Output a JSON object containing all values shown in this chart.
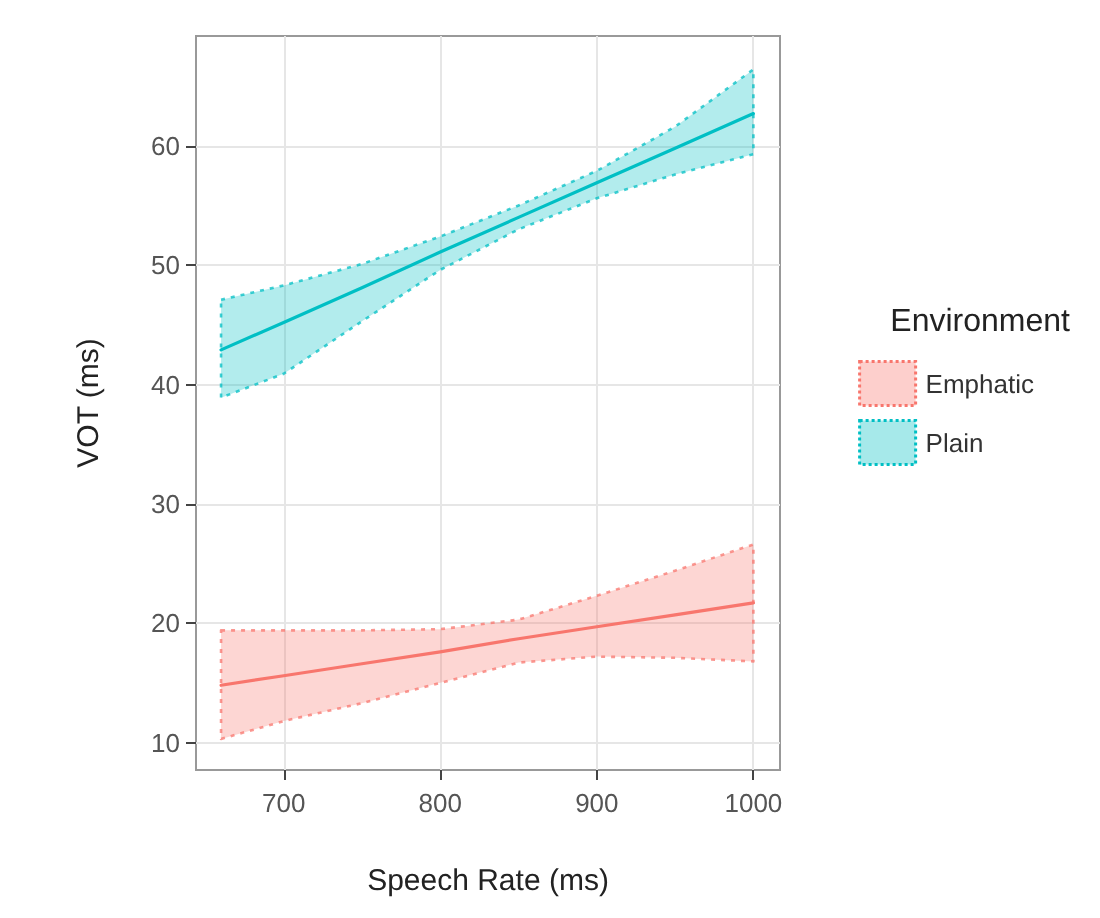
{
  "chart_data": {
    "type": "line",
    "xlabel": "Speech Rate (ms)",
    "ylabel": "VOT (ms)",
    "legend_title": "Environment",
    "x": [
      660,
      700,
      750,
      800,
      850,
      900,
      950,
      1000
    ],
    "series": [
      {
        "name": "Emphatic",
        "color": "#f8766d",
        "values": [
          14.8,
          15.6,
          16.6,
          17.6,
          18.7,
          19.7,
          20.7,
          21.7
        ],
        "lower": [
          10.3,
          11.8,
          13.3,
          15.0,
          16.7,
          17.2,
          17.1,
          16.8
        ],
        "upper": [
          19.4,
          19.4,
          19.4,
          19.5,
          20.3,
          22.3,
          24.4,
          26.6
        ]
      },
      {
        "name": "Plain",
        "color": "#00bfc4",
        "values": [
          42.9,
          45.2,
          48.1,
          51.1,
          54.0,
          56.9,
          59.8,
          62.7
        ],
        "lower": [
          38.9,
          40.9,
          45.3,
          49.6,
          53.0,
          55.6,
          57.6,
          59.3
        ],
        "upper": [
          47.1,
          48.3,
          50.1,
          52.4,
          55.0,
          57.9,
          61.6,
          66.4
        ]
      }
    ],
    "xlim": [
      644,
      1017
    ],
    "ylim": [
      7.7,
      69.2
    ],
    "xticks": [
      700,
      800,
      900,
      1000
    ],
    "yticks": [
      10,
      20,
      30,
      40,
      50,
      60
    ],
    "grid": true,
    "legend": "right",
    "marker": "none",
    "line_style": "solid"
  }
}
